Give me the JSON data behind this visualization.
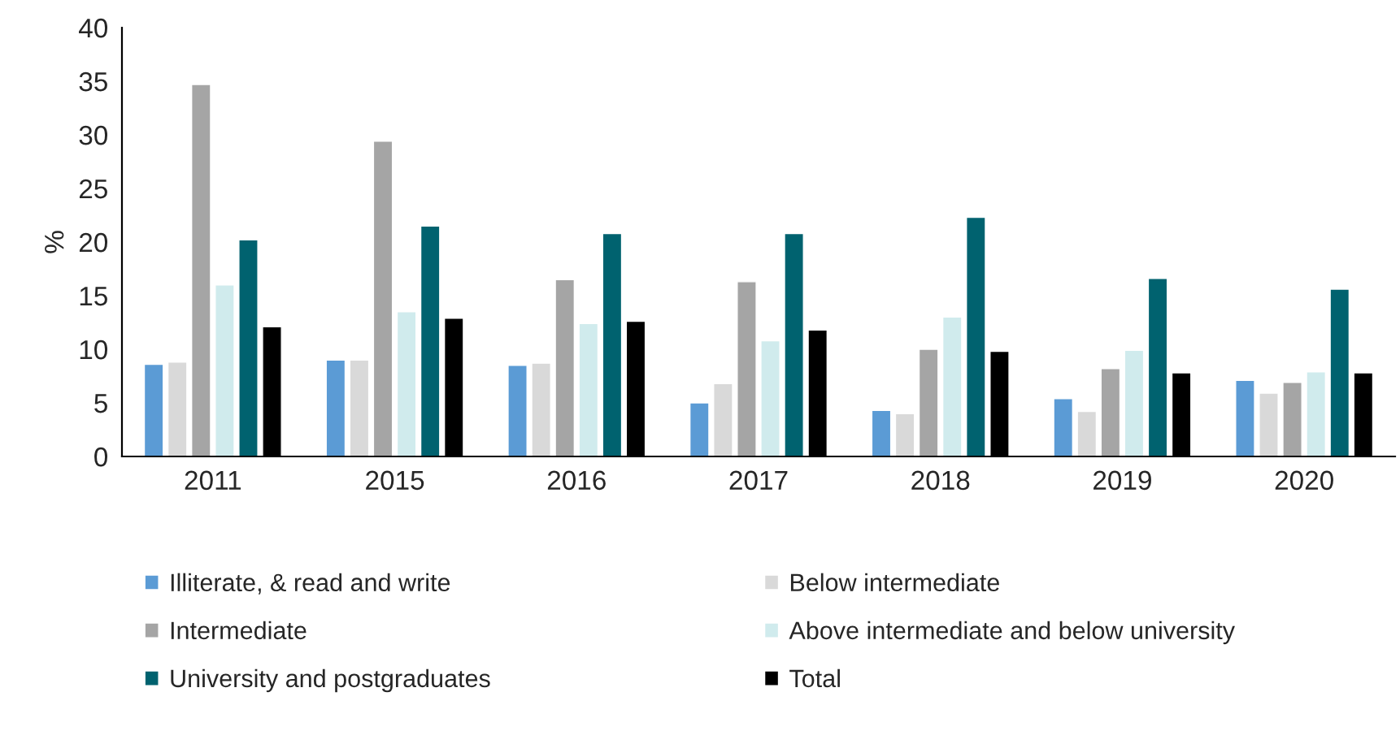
{
  "chart_data": {
    "type": "bar",
    "ylabel": "%",
    "categories": [
      "2011",
      "2015",
      "2016",
      "2017",
      "2018",
      "2019",
      "2020"
    ],
    "series": [
      {
        "name": "Illiterate, & read and write",
        "color": "#5b9bd5",
        "values": [
          8.6,
          9.0,
          8.5,
          5.0,
          4.3,
          5.4,
          7.1
        ]
      },
      {
        "name": "Below intermediate",
        "color": "#d9d9d9",
        "values": [
          8.8,
          9.0,
          8.7,
          6.8,
          4.0,
          4.2,
          5.9
        ]
      },
      {
        "name": "Intermediate",
        "color": "#a5a5a5",
        "values": [
          34.7,
          29.4,
          16.5,
          16.3,
          10.0,
          8.2,
          6.9
        ]
      },
      {
        "name": "Above intermediate and below university",
        "color": "#d0ebed",
        "values": [
          16.0,
          13.5,
          12.4,
          10.8,
          13.0,
          9.9,
          7.9
        ]
      },
      {
        "name": "University and postgraduates",
        "color": "#00626f",
        "values": [
          20.2,
          21.5,
          20.8,
          20.8,
          22.3,
          16.6,
          15.6
        ]
      },
      {
        "name": "Total",
        "color": "#000000",
        "values": [
          12.1,
          12.9,
          12.6,
          11.8,
          9.8,
          7.8,
          7.8
        ]
      }
    ],
    "ylim": [
      0,
      40
    ],
    "yticks": [
      0,
      5,
      10,
      15,
      20,
      25,
      30,
      35,
      40
    ],
    "grid": false,
    "legend": "bottom"
  }
}
